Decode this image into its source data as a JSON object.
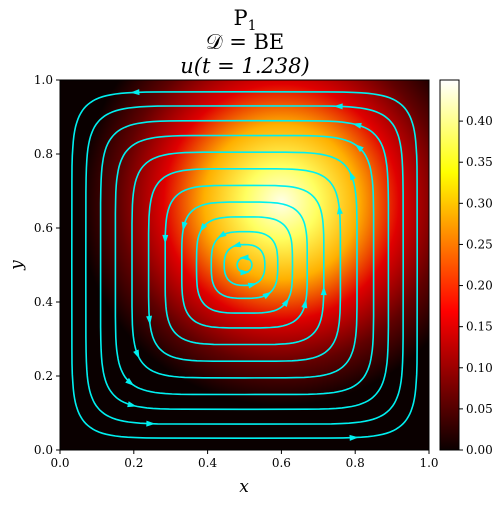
{
  "chart_data": {
    "type": "heatmap",
    "title": [
      "P1",
      "𝒟 = BE",
      "u(t = 1.238)"
    ],
    "xlabel": "x",
    "ylabel": "y",
    "xlim": [
      0.0,
      1.0
    ],
    "ylim": [
      0.0,
      1.0
    ],
    "x_ticks": [
      "0.0",
      "0.2",
      "0.4",
      "0.6",
      "0.8",
      "1.0"
    ],
    "y_ticks": [
      "0.0",
      "0.2",
      "0.4",
      "0.6",
      "0.8",
      "1.0"
    ],
    "colorbar": {
      "range": [
        0.0,
        0.45
      ],
      "ticks": [
        "0.00",
        "0.05",
        "0.10",
        "0.15",
        "0.20",
        "0.25",
        "0.30",
        "0.35",
        "0.40"
      ],
      "colormap": "hot"
    },
    "field": {
      "description_peak": [
        0.62,
        0.72
      ],
      "peak_value": 0.45
    },
    "streamlines": {
      "color": "#00f0f0",
      "center": [
        0.5,
        0.5
      ],
      "rotation": "counterclockwise"
    },
    "grid": false
  }
}
